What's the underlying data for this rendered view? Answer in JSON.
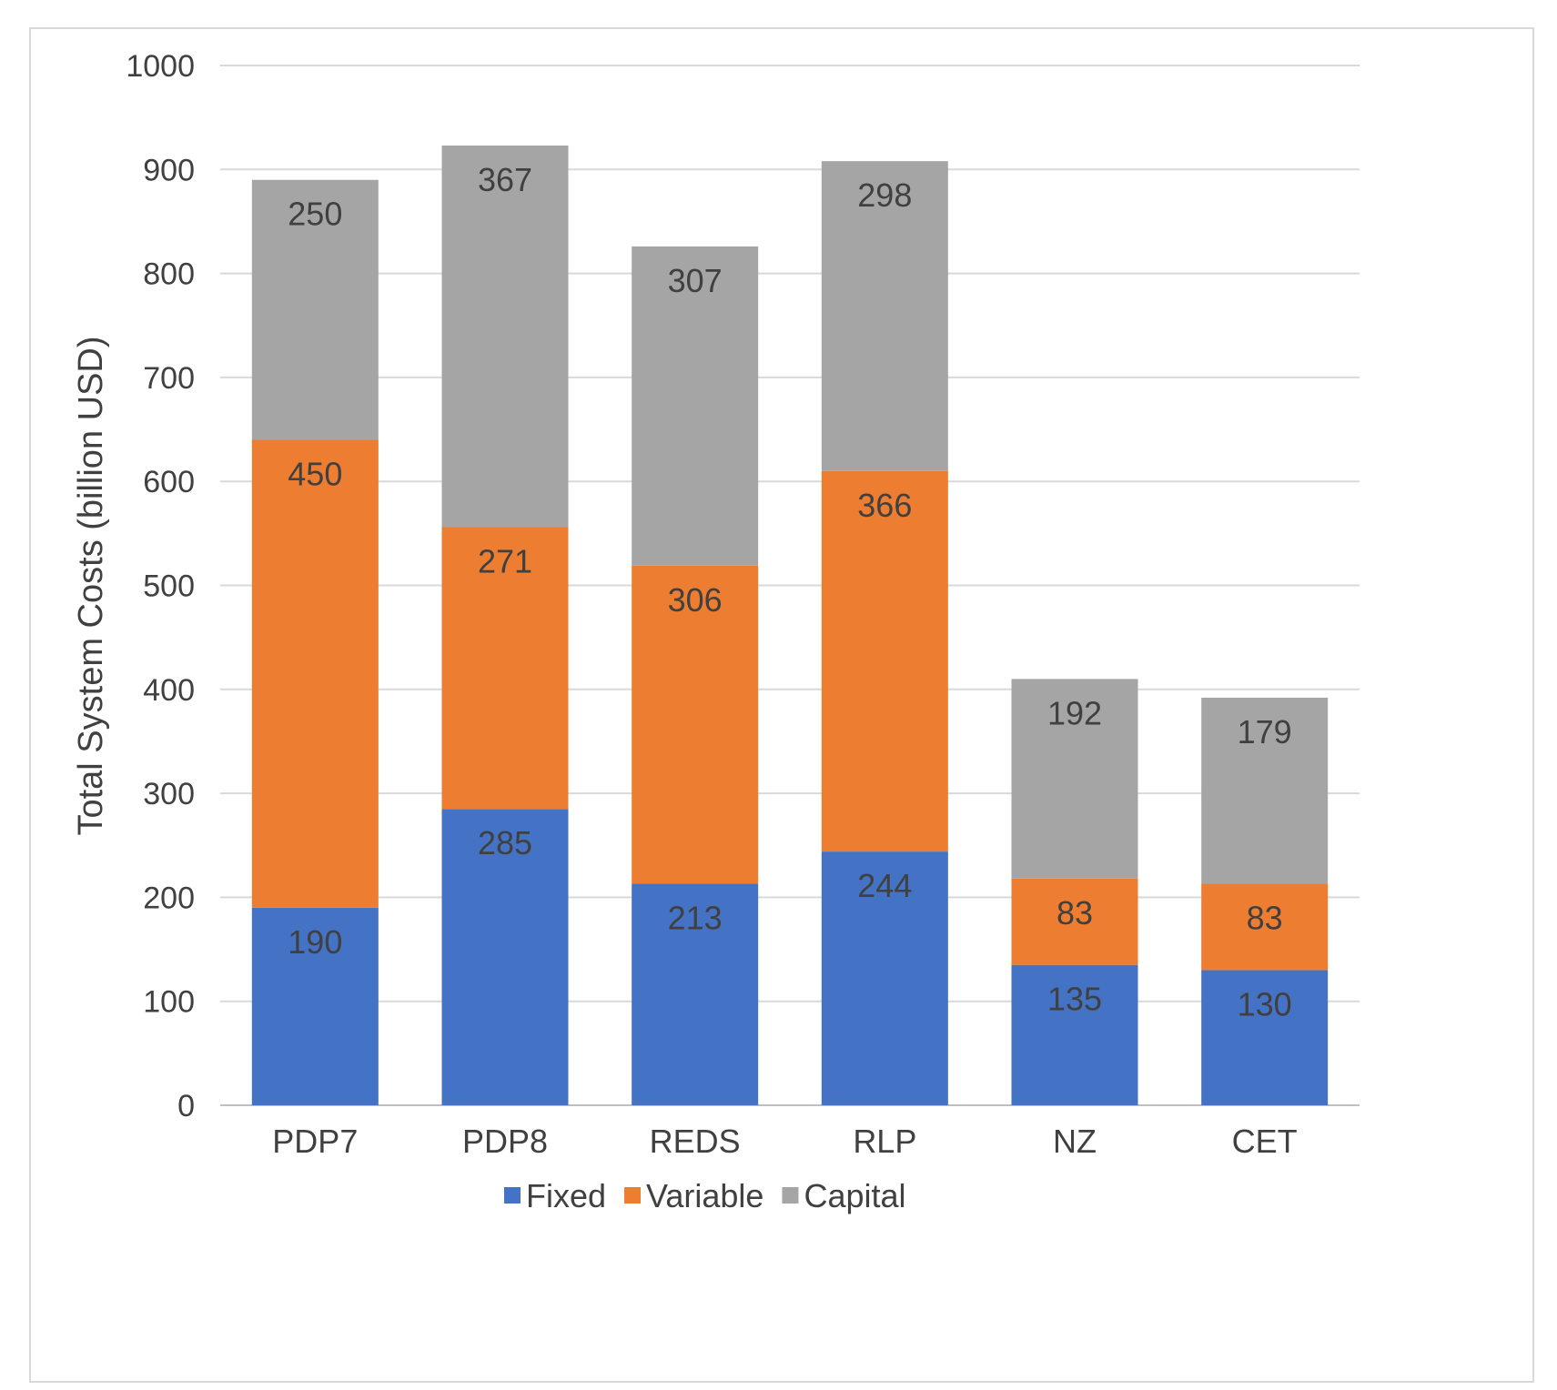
{
  "chart_data": {
    "type": "bar",
    "stacked": true,
    "title": "",
    "xlabel": "",
    "ylabel": "Total System Costs (billion USD)",
    "ylim": [
      0,
      1000
    ],
    "yticks": [
      0,
      100,
      200,
      300,
      400,
      500,
      600,
      700,
      800,
      900,
      1000
    ],
    "grid": true,
    "legend_position": "bottom",
    "categories": [
      "PDP7",
      "PDP8",
      "REDS",
      "RLP",
      "NZ",
      "CET"
    ],
    "series": [
      {
        "name": "Fixed",
        "color": "#4472C4",
        "values": [
          190,
          285,
          213,
          244,
          135,
          130
        ]
      },
      {
        "name": "Variable",
        "color": "#ED7D31",
        "values": [
          450,
          271,
          306,
          366,
          83,
          83
        ]
      },
      {
        "name": "Capital",
        "color": "#A5A5A5",
        "values": [
          250,
          367,
          307,
          298,
          192,
          179
        ]
      }
    ]
  }
}
